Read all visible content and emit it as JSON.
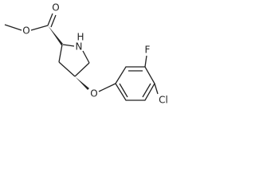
{
  "atoms": {
    "carbonyl_o": "O",
    "ester_o": "O",
    "ring_n": "N",
    "ring_h": "H",
    "ether_o": "O",
    "fluorine": "F",
    "chlorine": "Cl"
  }
}
